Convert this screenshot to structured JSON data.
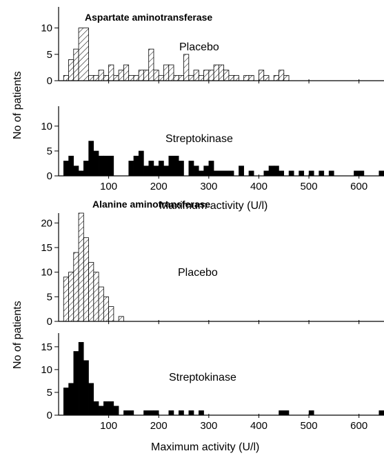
{
  "figure": {
    "top_xlabel": "Maximum activity (U/l)",
    "bottom_xlabel": "Maximum activity (U/l)",
    "ylabel": "No of patients"
  },
  "colors": {
    "placebo_hatch": "#000000",
    "streptokinase_fill": "#000000",
    "axis": "#000000"
  },
  "chart_data": [
    {
      "type": "bar",
      "title": "Aspartate aminotransferase",
      "series": "Placebo",
      "hatched": true,
      "xlim": [
        0,
        650
      ],
      "ylim": [
        0,
        14
      ],
      "yticks": [
        0,
        5,
        10
      ],
      "xticks": [
        100,
        200,
        300,
        400,
        500,
        600
      ],
      "show_x_tick_labels": false,
      "bins": [
        {
          "x0": 10,
          "x1": 20,
          "y": 1
        },
        {
          "x0": 20,
          "x1": 30,
          "y": 4
        },
        {
          "x0": 30,
          "x1": 40,
          "y": 6
        },
        {
          "x0": 40,
          "x1": 60,
          "y": 10
        },
        {
          "x0": 60,
          "x1": 70,
          "y": 1
        },
        {
          "x0": 70,
          "x1": 80,
          "y": 1
        },
        {
          "x0": 80,
          "x1": 90,
          "y": 2
        },
        {
          "x0": 90,
          "x1": 100,
          "y": 1
        },
        {
          "x0": 100,
          "x1": 110,
          "y": 3
        },
        {
          "x0": 110,
          "x1": 120,
          "y": 1
        },
        {
          "x0": 120,
          "x1": 130,
          "y": 2
        },
        {
          "x0": 130,
          "x1": 140,
          "y": 3
        },
        {
          "x0": 140,
          "x1": 150,
          "y": 1
        },
        {
          "x0": 150,
          "x1": 160,
          "y": 1
        },
        {
          "x0": 160,
          "x1": 170,
          "y": 2
        },
        {
          "x0": 170,
          "x1": 180,
          "y": 2
        },
        {
          "x0": 180,
          "x1": 190,
          "y": 6
        },
        {
          "x0": 190,
          "x1": 200,
          "y": 2
        },
        {
          "x0": 200,
          "x1": 210,
          "y": 1
        },
        {
          "x0": 210,
          "x1": 220,
          "y": 3
        },
        {
          "x0": 220,
          "x1": 230,
          "y": 3
        },
        {
          "x0": 230,
          "x1": 240,
          "y": 1
        },
        {
          "x0": 240,
          "x1": 250,
          "y": 1
        },
        {
          "x0": 250,
          "x1": 260,
          "y": 5
        },
        {
          "x0": 260,
          "x1": 270,
          "y": 1
        },
        {
          "x0": 270,
          "x1": 280,
          "y": 2
        },
        {
          "x0": 280,
          "x1": 290,
          "y": 1
        },
        {
          "x0": 290,
          "x1": 300,
          "y": 2
        },
        {
          "x0": 300,
          "x1": 310,
          "y": 2
        },
        {
          "x0": 310,
          "x1": 320,
          "y": 3
        },
        {
          "x0": 320,
          "x1": 330,
          "y": 3
        },
        {
          "x0": 330,
          "x1": 340,
          "y": 2
        },
        {
          "x0": 340,
          "x1": 350,
          "y": 1
        },
        {
          "x0": 350,
          "x1": 360,
          "y": 1
        },
        {
          "x0": 370,
          "x1": 380,
          "y": 1
        },
        {
          "x0": 380,
          "x1": 390,
          "y": 1
        },
        {
          "x0": 400,
          "x1": 410,
          "y": 2
        },
        {
          "x0": 410,
          "x1": 420,
          "y": 1
        },
        {
          "x0": 430,
          "x1": 440,
          "y": 1
        },
        {
          "x0": 440,
          "x1": 450,
          "y": 2
        },
        {
          "x0": 450,
          "x1": 460,
          "y": 1
        }
      ]
    },
    {
      "type": "bar",
      "title": "",
      "series": "Streptokinase",
      "hatched": false,
      "xlim": [
        0,
        650
      ],
      "ylim": [
        0,
        14
      ],
      "yticks": [
        0,
        5,
        10
      ],
      "xticks": [
        100,
        200,
        300,
        400,
        500,
        600
      ],
      "show_x_tick_labels": true,
      "bins": [
        {
          "x0": 10,
          "x1": 20,
          "y": 3
        },
        {
          "x0": 20,
          "x1": 30,
          "y": 4
        },
        {
          "x0": 30,
          "x1": 40,
          "y": 2
        },
        {
          "x0": 40,
          "x1": 50,
          "y": 1
        },
        {
          "x0": 50,
          "x1": 60,
          "y": 3
        },
        {
          "x0": 60,
          "x1": 70,
          "y": 7
        },
        {
          "x0": 70,
          "x1": 80,
          "y": 5
        },
        {
          "x0": 80,
          "x1": 90,
          "y": 4
        },
        {
          "x0": 90,
          "x1": 110,
          "y": 4
        },
        {
          "x0": 140,
          "x1": 150,
          "y": 3
        },
        {
          "x0": 150,
          "x1": 160,
          "y": 4
        },
        {
          "x0": 160,
          "x1": 170,
          "y": 5
        },
        {
          "x0": 170,
          "x1": 180,
          "y": 2
        },
        {
          "x0": 180,
          "x1": 190,
          "y": 3
        },
        {
          "x0": 190,
          "x1": 200,
          "y": 2
        },
        {
          "x0": 200,
          "x1": 210,
          "y": 3
        },
        {
          "x0": 210,
          "x1": 220,
          "y": 2
        },
        {
          "x0": 220,
          "x1": 240,
          "y": 4
        },
        {
          "x0": 240,
          "x1": 250,
          "y": 3
        },
        {
          "x0": 260,
          "x1": 270,
          "y": 3
        },
        {
          "x0": 270,
          "x1": 280,
          "y": 2
        },
        {
          "x0": 280,
          "x1": 290,
          "y": 1
        },
        {
          "x0": 290,
          "x1": 300,
          "y": 2
        },
        {
          "x0": 300,
          "x1": 310,
          "y": 3
        },
        {
          "x0": 310,
          "x1": 320,
          "y": 1
        },
        {
          "x0": 320,
          "x1": 340,
          "y": 1
        },
        {
          "x0": 340,
          "x1": 350,
          "y": 1
        },
        {
          "x0": 360,
          "x1": 370,
          "y": 2
        },
        {
          "x0": 380,
          "x1": 390,
          "y": 1
        },
        {
          "x0": 410,
          "x1": 420,
          "y": 1
        },
        {
          "x0": 420,
          "x1": 430,
          "y": 2
        },
        {
          "x0": 430,
          "x1": 440,
          "y": 2
        },
        {
          "x0": 440,
          "x1": 450,
          "y": 1
        },
        {
          "x0": 460,
          "x1": 470,
          "y": 1
        },
        {
          "x0": 480,
          "x1": 490,
          "y": 1
        },
        {
          "x0": 500,
          "x1": 510,
          "y": 1
        },
        {
          "x0": 520,
          "x1": 530,
          "y": 1
        },
        {
          "x0": 540,
          "x1": 550,
          "y": 1
        },
        {
          "x0": 590,
          "x1": 610,
          "y": 1
        },
        {
          "x0": 640,
          "x1": 650,
          "y": 1
        }
      ]
    },
    {
      "type": "bar",
      "title": "Alanine aminotransferase",
      "series": "Placebo",
      "hatched": true,
      "xlim": [
        0,
        650
      ],
      "ylim": [
        0,
        22
      ],
      "yticks": [
        0,
        5,
        10,
        15,
        20
      ],
      "xticks": [
        100,
        200,
        300,
        400,
        500,
        600
      ],
      "show_x_tick_labels": false,
      "bins": [
        {
          "x0": 10,
          "x1": 20,
          "y": 9
        },
        {
          "x0": 20,
          "x1": 30,
          "y": 10
        },
        {
          "x0": 30,
          "x1": 40,
          "y": 14
        },
        {
          "x0": 40,
          "x1": 50,
          "y": 22
        },
        {
          "x0": 50,
          "x1": 60,
          "y": 17
        },
        {
          "x0": 60,
          "x1": 70,
          "y": 12
        },
        {
          "x0": 70,
          "x1": 80,
          "y": 10
        },
        {
          "x0": 80,
          "x1": 90,
          "y": 7
        },
        {
          "x0": 90,
          "x1": 100,
          "y": 5
        },
        {
          "x0": 100,
          "x1": 110,
          "y": 3
        },
        {
          "x0": 120,
          "x1": 130,
          "y": 1
        }
      ]
    },
    {
      "type": "bar",
      "title": "",
      "series": "Streptokinase",
      "hatched": false,
      "xlim": [
        0,
        650
      ],
      "ylim": [
        0,
        18
      ],
      "yticks": [
        0,
        5,
        10,
        15
      ],
      "xticks": [
        100,
        200,
        300,
        400,
        500,
        600
      ],
      "show_x_tick_labels": true,
      "bins": [
        {
          "x0": 10,
          "x1": 20,
          "y": 6
        },
        {
          "x0": 20,
          "x1": 30,
          "y": 7
        },
        {
          "x0": 30,
          "x1": 40,
          "y": 14
        },
        {
          "x0": 40,
          "x1": 50,
          "y": 16
        },
        {
          "x0": 50,
          "x1": 60,
          "y": 12
        },
        {
          "x0": 60,
          "x1": 70,
          "y": 7
        },
        {
          "x0": 70,
          "x1": 80,
          "y": 3
        },
        {
          "x0": 80,
          "x1": 90,
          "y": 2
        },
        {
          "x0": 90,
          "x1": 100,
          "y": 3
        },
        {
          "x0": 100,
          "x1": 110,
          "y": 3
        },
        {
          "x0": 110,
          "x1": 120,
          "y": 2
        },
        {
          "x0": 130,
          "x1": 150,
          "y": 1
        },
        {
          "x0": 170,
          "x1": 190,
          "y": 1
        },
        {
          "x0": 190,
          "x1": 200,
          "y": 1
        },
        {
          "x0": 220,
          "x1": 230,
          "y": 1
        },
        {
          "x0": 240,
          "x1": 250,
          "y": 1
        },
        {
          "x0": 260,
          "x1": 270,
          "y": 1
        },
        {
          "x0": 280,
          "x1": 290,
          "y": 1
        },
        {
          "x0": 440,
          "x1": 460,
          "y": 1
        },
        {
          "x0": 500,
          "x1": 510,
          "y": 1
        },
        {
          "x0": 640,
          "x1": 650,
          "y": 1
        }
      ]
    }
  ]
}
